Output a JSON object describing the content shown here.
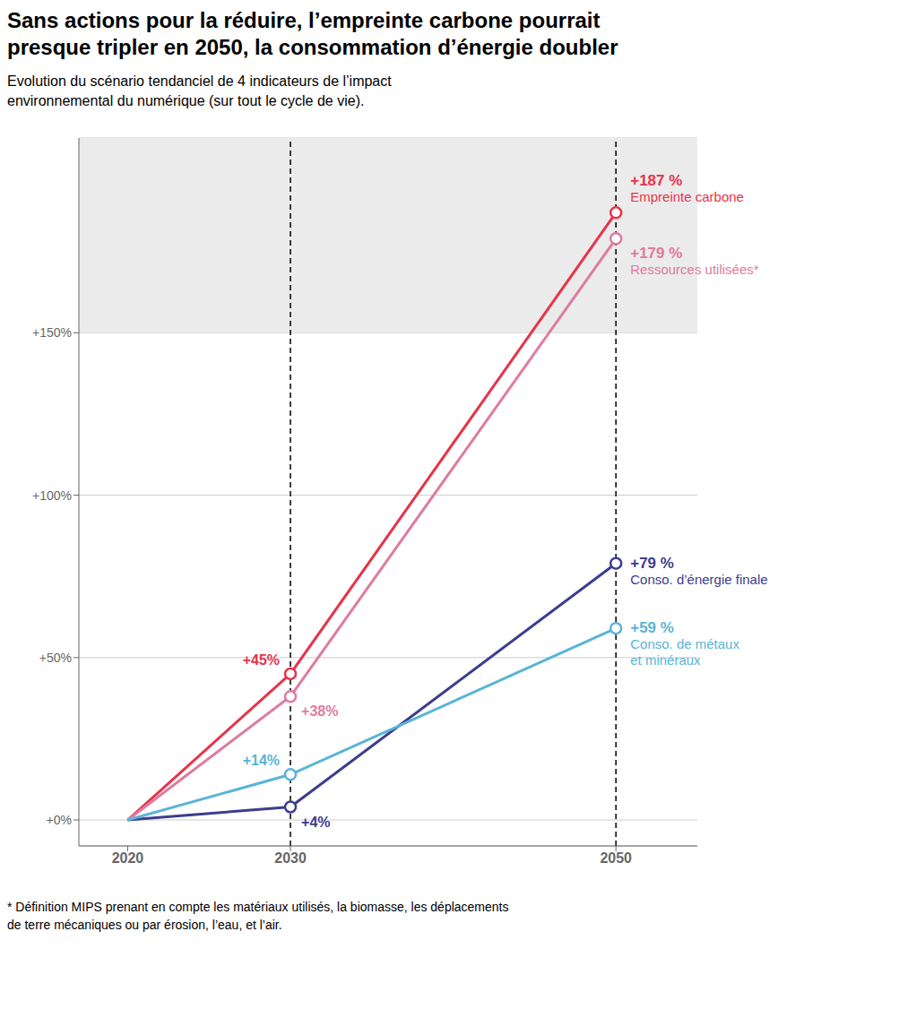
{
  "chart_data": {
    "type": "line",
    "title": "Sans actions pour la réduire, l’empreinte carbone pourrait\npresque tripler en 2050, la consommation d’énergie doubler",
    "subtitle": "Evolution du scénario tendanciel de 4 indicateurs de l’impact\nenvironnemental du numérique (sur tout le cycle de vie).",
    "footnote": "* Définition MIPS prenant en compte les matériaux utilisés, la biomasse, les déplacements\nde terre mécaniques ou par érosion, l’eau, et l’air.",
    "x": [
      2020,
      2030,
      2050
    ],
    "series": [
      {
        "name": "Empreinte carbone",
        "color": "#e8334a",
        "values": [
          0,
          45,
          187
        ],
        "value_labels": [
          null,
          "+45%",
          "+187 %"
        ]
      },
      {
        "name": "Ressources utilisées*",
        "color": "#e07aa0",
        "values": [
          0,
          38,
          179
        ],
        "value_labels": [
          null,
          "+38%",
          "+179 %"
        ]
      },
      {
        "name": "Conso. d’énergie finale",
        "color": "#3d3d8f",
        "values": [
          0,
          4,
          79
        ],
        "value_labels": [
          null,
          "+4%",
          "+79 %"
        ]
      },
      {
        "name": "Conso. de métaux\net minéraux",
        "color": "#5ab4d6",
        "values": [
          0,
          14,
          59
        ],
        "value_labels": [
          null,
          "+14%",
          "+59 %"
        ]
      }
    ],
    "xlim": [
      2017,
      2055
    ],
    "xticks": [
      2020,
      2030,
      2050
    ],
    "ylim": [
      -8,
      210
    ],
    "yticks": [
      {
        "value": 0,
        "label": "+0%"
      },
      {
        "value": 50,
        "label": "+50%"
      },
      {
        "value": 100,
        "label": "+100%"
      },
      {
        "value": 150,
        "label": "+150%"
      }
    ],
    "grid": true,
    "data_labels": true,
    "marker": "circle",
    "vlines": [
      2030,
      2050
    ],
    "band": {
      "from": 150,
      "color": "#ebebeb"
    }
  }
}
